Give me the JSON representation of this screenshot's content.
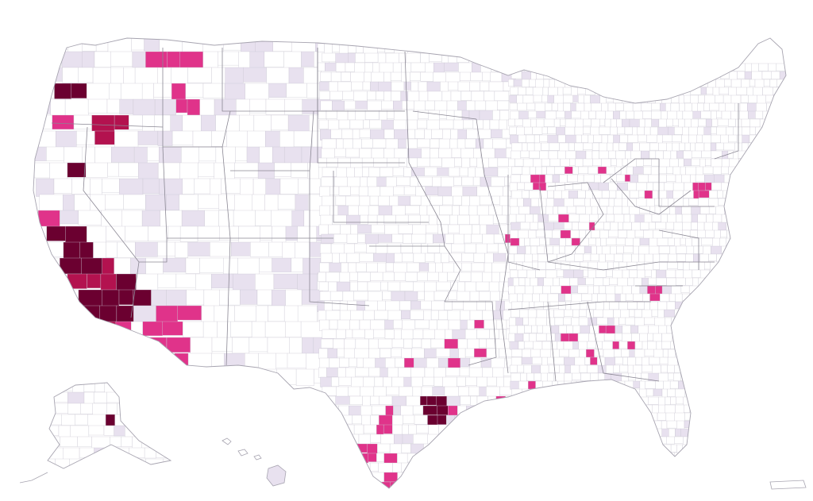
{
  "map": {
    "kind": "choropleth",
    "colors": {
      "background": "#ffffff",
      "empty": "#ffffff",
      "light": "#e8e1ef",
      "medium": "#e0338a",
      "strong": "#b3124f",
      "darkest": "#6b0030",
      "border": "#c9c6d2",
      "state_border": "#8a8793"
    },
    "regions_shown": [
      "contiguous-us",
      "alaska",
      "hawaii",
      "puerto-rico"
    ]
  }
}
